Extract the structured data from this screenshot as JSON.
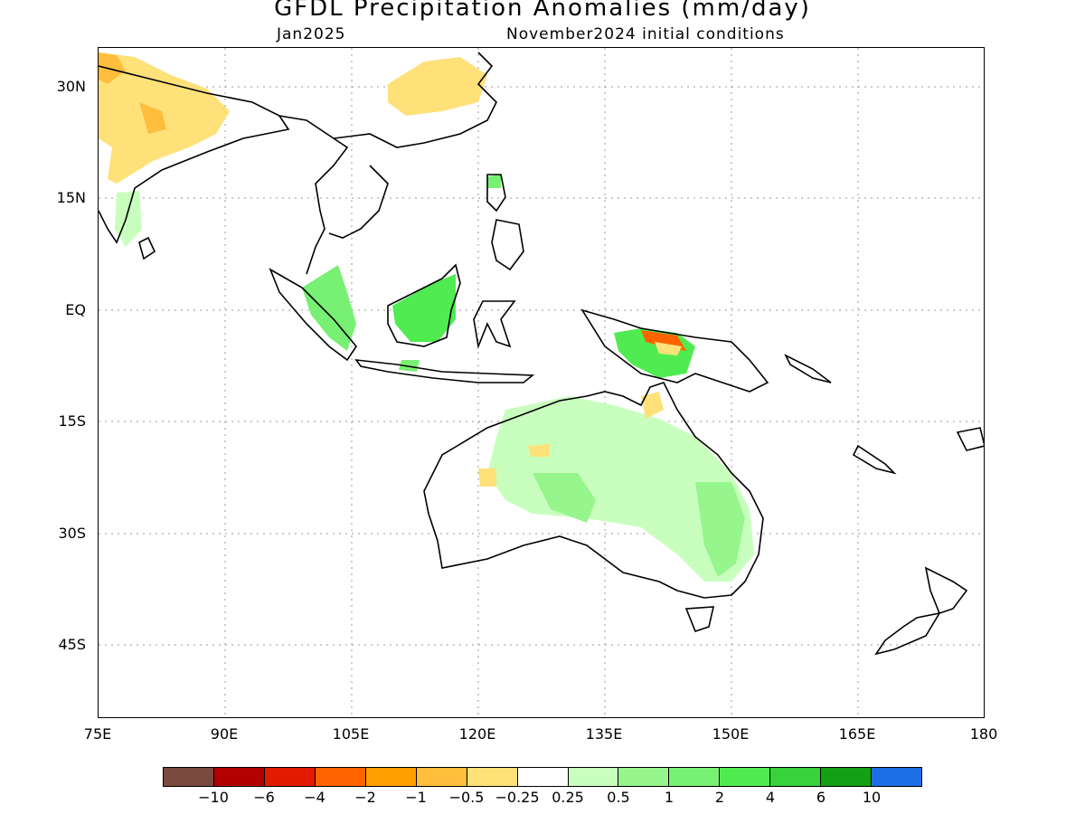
{
  "title": "GFDL Precipitation Anomalies (mm/day)",
  "subtitle_left": "Jan2025",
  "subtitle_right": "November2024 initial conditions",
  "y_ticks": [
    "30N",
    "15N",
    "EQ",
    "15S",
    "30S",
    "45S"
  ],
  "x_ticks": [
    "75E",
    "90E",
    "105E",
    "120E",
    "135E",
    "150E",
    "165E",
    "180"
  ],
  "colorbar": {
    "colors": [
      "#7a4a3e",
      "#b30000",
      "#e21b00",
      "#ff6400",
      "#ffa000",
      "#ffbe3c",
      "#ffe17a",
      "#ffffff",
      "#c8ffbe",
      "#96f58c",
      "#78f073",
      "#50eb50",
      "#37d23c",
      "#14a014",
      "#1e6ee6"
    ],
    "labels": [
      "−10",
      "−6",
      "−4",
      "−2",
      "−1",
      "−0.5",
      "−0.25",
      "0.25",
      "0.5",
      "1",
      "2",
      "4",
      "6",
      "10"
    ]
  },
  "map": {
    "lon_range": [
      75,
      180
    ],
    "lat_range": [
      -53,
      35
    ],
    "grid": "dotted"
  }
}
